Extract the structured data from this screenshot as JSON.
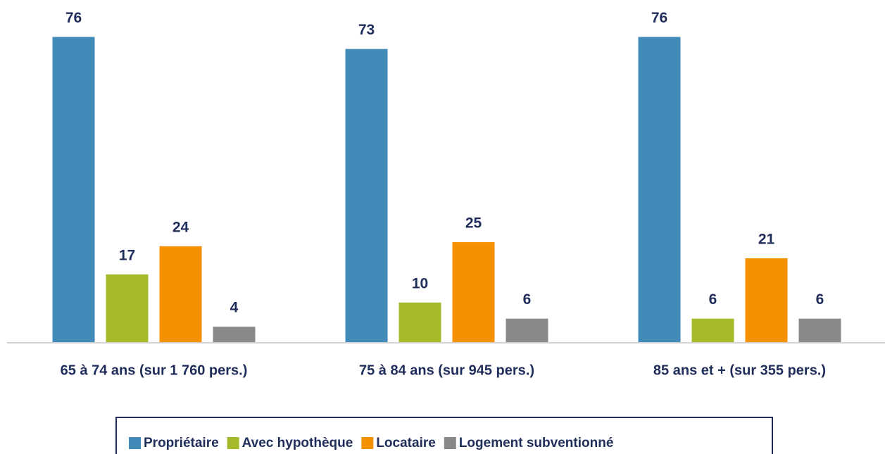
{
  "chart_data": {
    "type": "bar",
    "categories": [
      "65 à 74 ans (sur 1 760 pers.)",
      "75 à 84 ans (sur 945 pers.)",
      "85 ans et + (sur 355 pers.)"
    ],
    "series": [
      {
        "name": "Propriétaire",
        "color": "#428bb8",
        "values": [
          76,
          73,
          76
        ]
      },
      {
        "name": "Avec hypothèque",
        "color": "#a5b92a",
        "values": [
          17,
          10,
          6
        ]
      },
      {
        "name": "Locataire",
        "color": "#f49100",
        "values": [
          24,
          25,
          21
        ]
      },
      {
        "name": "Logement subventionné",
        "color": "#898989",
        "values": [
          4,
          6,
          6
        ]
      }
    ],
    "ylim": [
      0,
      85
    ],
    "legend": "bottom"
  }
}
